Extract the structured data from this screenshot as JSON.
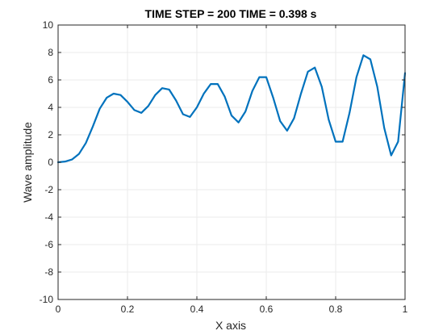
{
  "chart_data": {
    "type": "line",
    "title": "TIME STEP = 200 TIME = 0.398 s",
    "xlabel": "X axis",
    "ylabel": "Wave amplitude",
    "xlim": [
      0,
      1
    ],
    "ylim": [
      -10,
      10
    ],
    "grid": true,
    "x_ticks": [
      {
        "value": 0,
        "label": "0"
      },
      {
        "value": 0.2,
        "label": "0.2"
      },
      {
        "value": 0.4,
        "label": "0.4"
      },
      {
        "value": 0.6,
        "label": "0.6"
      },
      {
        "value": 0.8,
        "label": "0.8"
      },
      {
        "value": 1,
        "label": "1"
      }
    ],
    "y_ticks": [
      {
        "value": -10,
        "label": "-10"
      },
      {
        "value": -8,
        "label": "-8"
      },
      {
        "value": -6,
        "label": "-6"
      },
      {
        "value": -4,
        "label": "-4"
      },
      {
        "value": -2,
        "label": "-2"
      },
      {
        "value": 0,
        "label": "0"
      },
      {
        "value": 2,
        "label": "2"
      },
      {
        "value": 4,
        "label": "4"
      },
      {
        "value": 6,
        "label": "6"
      },
      {
        "value": 8,
        "label": "8"
      },
      {
        "value": 10,
        "label": "10"
      }
    ],
    "series": [
      {
        "color": "#0072BD",
        "x": [
          0,
          0.02,
          0.04,
          0.06,
          0.08,
          0.1,
          0.12,
          0.14,
          0.16,
          0.18,
          0.2,
          0.22,
          0.24,
          0.26,
          0.28,
          0.3,
          0.32,
          0.34,
          0.36,
          0.38,
          0.4,
          0.42,
          0.44,
          0.46,
          0.48,
          0.5,
          0.52,
          0.54,
          0.56,
          0.58,
          0.6,
          0.62,
          0.64,
          0.66,
          0.68,
          0.7,
          0.72,
          0.74,
          0.76,
          0.78,
          0.8,
          0.82,
          0.84,
          0.86,
          0.88,
          0.9,
          0.92,
          0.94,
          0.96,
          0.98,
          1.0
        ],
        "y": [
          0,
          0.05,
          0.2,
          0.6,
          1.4,
          2.6,
          3.9,
          4.7,
          5.0,
          4.9,
          4.4,
          3.8,
          3.6,
          4.1,
          4.9,
          5.4,
          5.3,
          4.5,
          3.5,
          3.3,
          4.0,
          5.0,
          5.7,
          5.7,
          4.8,
          3.4,
          2.9,
          3.7,
          5.2,
          6.2,
          6.2,
          4.7,
          3.0,
          2.3,
          3.2,
          5.0,
          6.6,
          6.9,
          5.5,
          3.1,
          1.5,
          1.5,
          3.6,
          6.2,
          7.8,
          7.5,
          5.5,
          2.5,
          0.5,
          1.5,
          6.5
        ]
      }
    ]
  }
}
